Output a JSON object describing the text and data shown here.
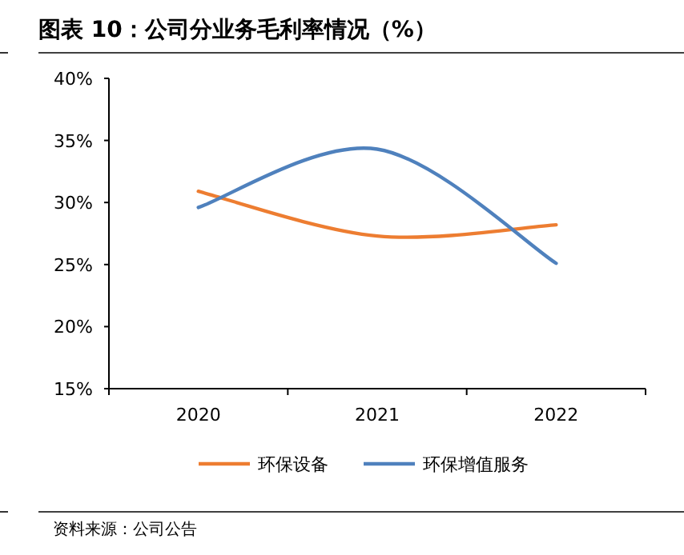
{
  "chart_data": {
    "type": "line",
    "title": "图表 10：公司分业务毛利率情况（%）",
    "categories": [
      "2020",
      "2021",
      "2022"
    ],
    "series": [
      {
        "name": "环保设备",
        "color": "#ed7d31",
        "values": [
          30.9,
          27.3,
          28.2
        ]
      },
      {
        "name": "环保增值服务",
        "color": "#4f81bd",
        "values": [
          29.6,
          34.3,
          25.1
        ]
      }
    ],
    "ylim": [
      15,
      40
    ],
    "yticks": [
      {
        "value": 15,
        "label": "15%"
      },
      {
        "value": 20,
        "label": "20%"
      },
      {
        "value": 25,
        "label": "25%"
      },
      {
        "value": 30,
        "label": "30%"
      },
      {
        "value": 35,
        "label": "35%"
      },
      {
        "value": 40,
        "label": "40%"
      }
    ],
    "grid": false,
    "legend": "bottom",
    "marker": "none",
    "line_style": "solid",
    "annotations": [
      "资料来源：公司公告"
    ]
  }
}
